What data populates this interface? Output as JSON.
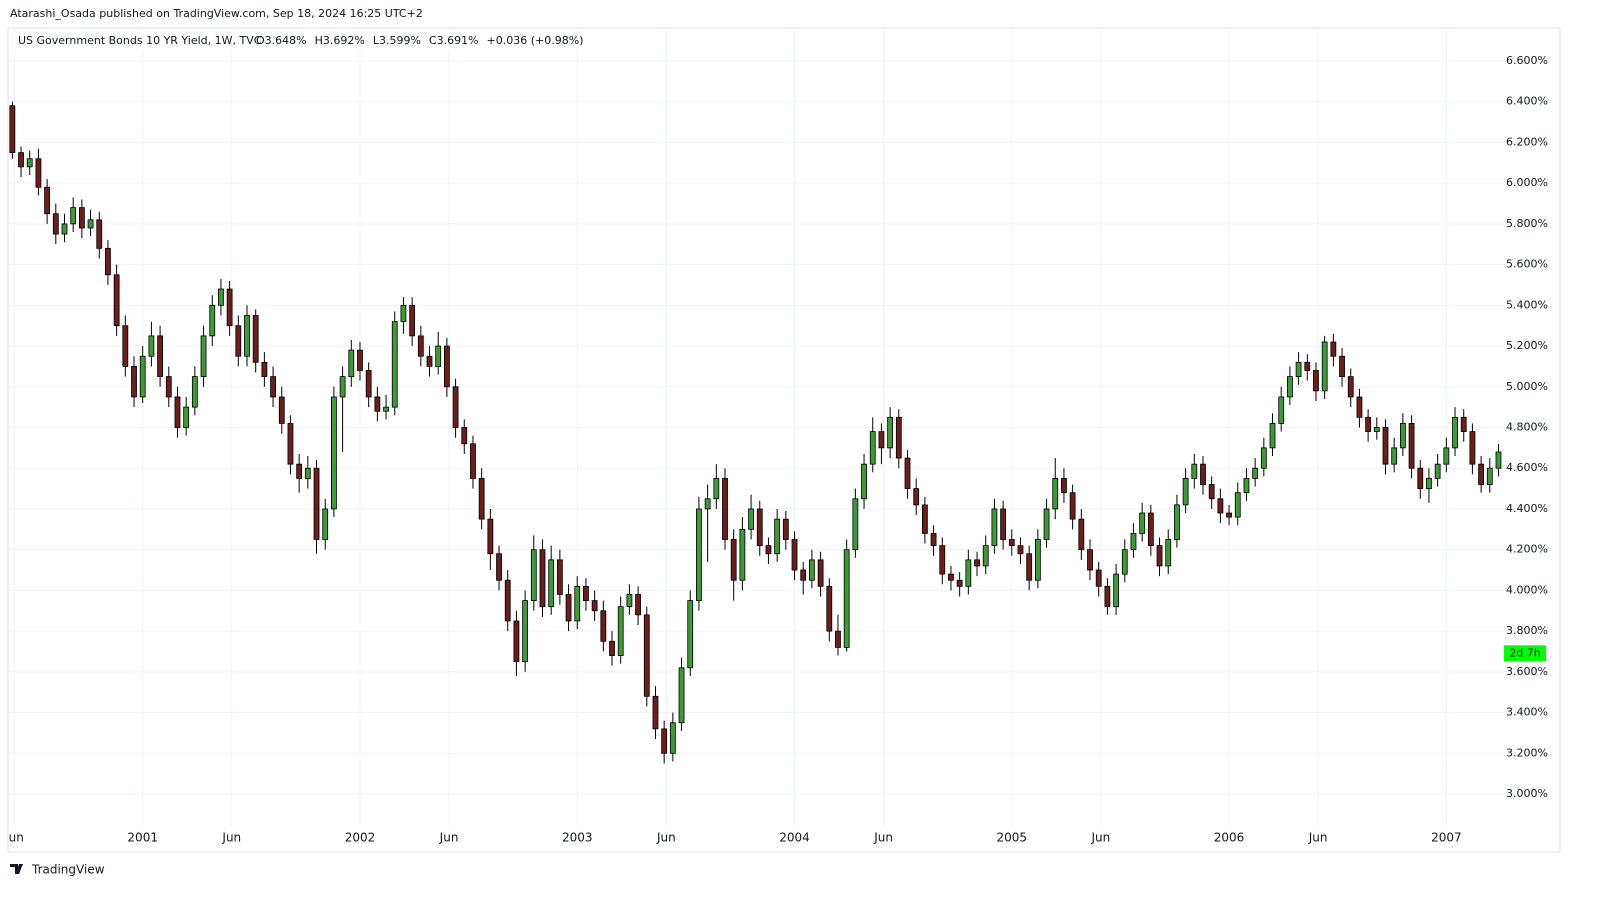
{
  "header": {
    "publisher": "Atarashi_Osada published on TradingView.com, Sep 18, 2024 16:25 UTC+2",
    "brand": "TradingView"
  },
  "chart_data": {
    "type": "candlestick",
    "title": "US Government Bonds 10 YR Yield, 1W, TVC",
    "legend_values": [
      "O3.648%",
      "H3.692%",
      "L3.599%",
      "C3.691%",
      "+0.036 (+0.98%)"
    ],
    "countdown": {
      "label": "2d 7h",
      "value": 3.691
    },
    "up_color": "#3d9b35",
    "down_color": "#6e1d1d",
    "outline_color": "#000000",
    "countdown_color": "#00ff00",
    "grid": true,
    "xlim": [
      2000.38,
      2007.27
    ],
    "xticks": [
      {
        "value": 2000.41,
        "label": "Jun"
      },
      {
        "value": 2001,
        "label": "2001"
      },
      {
        "value": 2001.41,
        "label": "Jun"
      },
      {
        "value": 2002,
        "label": "2002"
      },
      {
        "value": 2002.41,
        "label": "Jun"
      },
      {
        "value": 2003,
        "label": "2003"
      },
      {
        "value": 2003.41,
        "label": "Jun"
      },
      {
        "value": 2004,
        "label": "2004"
      },
      {
        "value": 2004.41,
        "label": "Jun"
      },
      {
        "value": 2005,
        "label": "2005"
      },
      {
        "value": 2005.41,
        "label": "Jun"
      },
      {
        "value": 2006,
        "label": "2006"
      },
      {
        "value": 2006.41,
        "label": "Jun"
      },
      {
        "value": 2007,
        "label": "2007"
      }
    ],
    "ylim": [
      2.843,
      6.762
    ],
    "yticks": [
      {
        "value": 3.0,
        "label": "3.000%"
      },
      {
        "value": 3.2,
        "label": "3.200%"
      },
      {
        "value": 3.4,
        "label": "3.400%"
      },
      {
        "value": 3.6,
        "label": "3.600%"
      },
      {
        "value": 3.8,
        "label": "3.800%"
      },
      {
        "value": 4.0,
        "label": "4.000%"
      },
      {
        "value": 4.2,
        "label": "4.200%"
      },
      {
        "value": 4.4,
        "label": "4.400%"
      },
      {
        "value": 4.6,
        "label": "4.600%"
      },
      {
        "value": 4.8,
        "label": "4.800%"
      },
      {
        "value": 5.0,
        "label": "5.000%"
      },
      {
        "value": 5.2,
        "label": "5.200%"
      },
      {
        "value": 5.4,
        "label": "5.400%"
      },
      {
        "value": 5.6,
        "label": "5.600%"
      },
      {
        "value": 5.8,
        "label": "5.800%"
      },
      {
        "value": 6.0,
        "label": "6.000%"
      },
      {
        "value": 6.2,
        "label": "6.200%"
      },
      {
        "value": 6.4,
        "label": "6.400%"
      },
      {
        "value": 6.6,
        "label": "6.600%"
      }
    ],
    "x": [
      2000.4,
      2000.44,
      2000.48,
      2000.52,
      2000.56,
      2000.6,
      2000.64,
      2000.68,
      2000.72,
      2000.76,
      2000.8,
      2000.84,
      2000.88,
      2000.92,
      2000.96,
      2001,
      2001.04,
      2001.08,
      2001.12,
      2001.16,
      2001.2,
      2001.24,
      2001.28,
      2001.32,
      2001.36,
      2001.4,
      2001.44,
      2001.48,
      2001.52,
      2001.56,
      2001.6,
      2001.64,
      2001.68,
      2001.72,
      2001.76,
      2001.8,
      2001.84,
      2001.88,
      2001.92,
      2001.96,
      2002,
      2002.04,
      2002.08,
      2002.12,
      2002.16,
      2002.2,
      2002.24,
      2002.28,
      2002.32,
      2002.36,
      2002.4,
      2002.44,
      2002.48,
      2002.52,
      2002.56,
      2002.6,
      2002.64,
      2002.68,
      2002.72,
      2002.76,
      2002.8,
      2002.84,
      2002.88,
      2002.92,
      2002.96,
      2003,
      2003.04,
      2003.08,
      2003.12,
      2003.16,
      2003.2,
      2003.24,
      2003.28,
      2003.32,
      2003.36,
      2003.4,
      2003.44,
      2003.48,
      2003.52,
      2003.56,
      2003.6,
      2003.64,
      2003.68,
      2003.72,
      2003.76,
      2003.8,
      2003.84,
      2003.88,
      2003.92,
      2003.96,
      2004,
      2004.04,
      2004.08,
      2004.12,
      2004.16,
      2004.2,
      2004.24,
      2004.28,
      2004.32,
      2004.36,
      2004.4,
      2004.44,
      2004.48,
      2004.52,
      2004.56,
      2004.6,
      2004.64,
      2004.68,
      2004.72,
      2004.76,
      2004.8,
      2004.84,
      2004.88,
      2004.92,
      2004.96,
      2005,
      2005.04,
      2005.08,
      2005.12,
      2005.16,
      2005.2,
      2005.24,
      2005.28,
      2005.32,
      2005.36,
      2005.4,
      2005.44,
      2005.48,
      2005.52,
      2005.56,
      2005.6,
      2005.64,
      2005.68,
      2005.72,
      2005.76,
      2005.8,
      2005.84,
      2005.88,
      2005.92,
      2005.96,
      2006,
      2006.04,
      2006.08,
      2006.12,
      2006.16,
      2006.2,
      2006.24,
      2006.28,
      2006.32,
      2006.36,
      2006.4,
      2006.44,
      2006.48,
      2006.52,
      2006.56,
      2006.6,
      2006.64,
      2006.68,
      2006.72,
      2006.76,
      2006.8,
      2006.84,
      2006.88,
      2006.92,
      2006.96,
      2007,
      2007.04,
      2007.08,
      2007.12,
      2007.16,
      2007.2,
      2007.24
    ],
    "ohlc": [
      [
        6.38,
        6.4,
        6.12,
        6.15
      ],
      [
        6.15,
        6.18,
        6.03,
        6.08
      ],
      [
        6.08,
        6.16,
        6.04,
        6.12
      ],
      [
        6.12,
        6.17,
        5.94,
        5.98
      ],
      [
        5.98,
        6.02,
        5.8,
        5.85
      ],
      [
        5.85,
        5.9,
        5.7,
        5.75
      ],
      [
        5.75,
        5.85,
        5.71,
        5.8
      ],
      [
        5.8,
        5.93,
        5.76,
        5.88
      ],
      [
        5.88,
        5.92,
        5.73,
        5.78
      ],
      [
        5.78,
        5.87,
        5.74,
        5.82
      ],
      [
        5.82,
        5.86,
        5.63,
        5.68
      ],
      [
        5.68,
        5.72,
        5.5,
        5.55
      ],
      [
        5.55,
        5.6,
        5.25,
        5.3
      ],
      [
        5.3,
        5.35,
        5.05,
        5.1
      ],
      [
        5.1,
        5.15,
        4.9,
        4.95
      ],
      [
        4.95,
        5.2,
        4.92,
        5.15
      ],
      [
        5.15,
        5.32,
        5.1,
        5.25
      ],
      [
        5.25,
        5.3,
        5.0,
        5.05
      ],
      [
        5.05,
        5.1,
        4.9,
        4.95
      ],
      [
        4.95,
        5.0,
        4.75,
        4.8
      ],
      [
        4.8,
        4.95,
        4.76,
        4.9
      ],
      [
        4.9,
        5.1,
        4.86,
        5.05
      ],
      [
        5.05,
        5.3,
        5.0,
        5.25
      ],
      [
        5.25,
        5.45,
        5.2,
        5.4
      ],
      [
        5.4,
        5.53,
        5.35,
        5.48
      ],
      [
        5.48,
        5.52,
        5.25,
        5.3
      ],
      [
        5.3,
        5.35,
        5.1,
        5.15
      ],
      [
        5.15,
        5.4,
        5.1,
        5.35
      ],
      [
        5.35,
        5.38,
        5.07,
        5.12
      ],
      [
        5.12,
        5.17,
        5.0,
        5.05
      ],
      [
        5.05,
        5.1,
        4.9,
        4.95
      ],
      [
        4.95,
        5.0,
        4.77,
        4.82
      ],
      [
        4.82,
        4.86,
        4.57,
        4.62
      ],
      [
        4.62,
        4.67,
        4.48,
        4.55
      ],
      [
        4.55,
        4.66,
        4.5,
        4.6
      ],
      [
        4.6,
        4.64,
        4.18,
        4.25
      ],
      [
        4.25,
        4.45,
        4.2,
        4.4
      ],
      [
        4.4,
        5.0,
        4.36,
        4.95
      ],
      [
        4.95,
        5.1,
        4.68,
        5.05
      ],
      [
        5.05,
        5.23,
        5.0,
        5.18
      ],
      [
        5.18,
        5.22,
        5.03,
        5.08
      ],
      [
        5.08,
        5.12,
        4.9,
        4.95
      ],
      [
        4.95,
        5.0,
        4.83,
        4.88
      ],
      [
        4.88,
        4.96,
        4.84,
        4.9
      ],
      [
        4.9,
        5.37,
        4.86,
        5.32
      ],
      [
        5.32,
        5.44,
        5.26,
        5.4
      ],
      [
        5.4,
        5.44,
        5.2,
        5.25
      ],
      [
        5.25,
        5.3,
        5.1,
        5.15
      ],
      [
        5.15,
        5.2,
        5.05,
        5.1
      ],
      [
        5.1,
        5.27,
        5.06,
        5.2
      ],
      [
        5.2,
        5.24,
        4.95,
        5.0
      ],
      [
        5.0,
        5.04,
        4.75,
        4.8
      ],
      [
        4.8,
        4.84,
        4.67,
        4.72
      ],
      [
        4.72,
        4.76,
        4.5,
        4.55
      ],
      [
        4.55,
        4.6,
        4.3,
        4.35
      ],
      [
        4.35,
        4.4,
        4.1,
        4.18
      ],
      [
        4.18,
        4.22,
        4.0,
        4.05
      ],
      [
        4.05,
        4.1,
        3.8,
        3.85
      ],
      [
        3.85,
        3.9,
        3.58,
        3.65
      ],
      [
        3.65,
        4.0,
        3.6,
        3.95
      ],
      [
        3.95,
        4.27,
        3.9,
        4.2
      ],
      [
        4.2,
        4.25,
        3.87,
        3.92
      ],
      [
        3.92,
        4.22,
        3.88,
        4.15
      ],
      [
        4.15,
        4.2,
        3.93,
        3.98
      ],
      [
        3.98,
        4.03,
        3.8,
        3.85
      ],
      [
        3.85,
        4.07,
        3.81,
        4.02
      ],
      [
        4.02,
        4.06,
        3.9,
        3.95
      ],
      [
        3.95,
        4.0,
        3.85,
        3.9
      ],
      [
        3.9,
        3.95,
        3.7,
        3.75
      ],
      [
        3.75,
        3.8,
        3.63,
        3.68
      ],
      [
        3.68,
        3.97,
        3.64,
        3.92
      ],
      [
        3.92,
        4.03,
        3.88,
        3.98
      ],
      [
        3.98,
        4.02,
        3.83,
        3.88
      ],
      [
        3.88,
        3.92,
        3.43,
        3.48
      ],
      [
        3.48,
        3.53,
        3.27,
        3.32
      ],
      [
        3.32,
        3.36,
        3.15,
        3.2
      ],
      [
        3.2,
        3.4,
        3.16,
        3.35
      ],
      [
        3.35,
        3.67,
        3.31,
        3.62
      ],
      [
        3.62,
        4.0,
        3.58,
        3.95
      ],
      [
        3.95,
        4.46,
        3.9,
        4.4
      ],
      [
        4.4,
        4.52,
        4.14,
        4.45
      ],
      [
        4.45,
        4.62,
        4.4,
        4.55
      ],
      [
        4.55,
        4.6,
        4.2,
        4.25
      ],
      [
        4.25,
        4.3,
        3.95,
        4.05
      ],
      [
        4.05,
        4.36,
        4.0,
        4.3
      ],
      [
        4.3,
        4.47,
        4.25,
        4.4
      ],
      [
        4.4,
        4.44,
        4.17,
        4.22
      ],
      [
        4.22,
        4.26,
        4.13,
        4.18
      ],
      [
        4.18,
        4.4,
        4.14,
        4.35
      ],
      [
        4.35,
        4.39,
        4.2,
        4.25
      ],
      [
        4.25,
        4.29,
        4.05,
        4.1
      ],
      [
        4.1,
        4.14,
        3.98,
        4.05
      ],
      [
        4.05,
        4.2,
        4.01,
        4.15
      ],
      [
        4.15,
        4.19,
        3.97,
        4.02
      ],
      [
        4.02,
        4.06,
        3.75,
        3.8
      ],
      [
        3.8,
        3.88,
        3.68,
        3.72
      ],
      [
        3.72,
        4.25,
        3.7,
        4.2
      ],
      [
        4.2,
        4.5,
        4.16,
        4.45
      ],
      [
        4.45,
        4.67,
        4.4,
        4.62
      ],
      [
        4.62,
        4.85,
        4.58,
        4.78
      ],
      [
        4.78,
        4.82,
        4.62,
        4.7
      ],
      [
        4.7,
        4.9,
        4.65,
        4.85
      ],
      [
        4.85,
        4.89,
        4.6,
        4.65
      ],
      [
        4.65,
        4.69,
        4.45,
        4.5
      ],
      [
        4.5,
        4.55,
        4.37,
        4.42
      ],
      [
        4.42,
        4.46,
        4.23,
        4.28
      ],
      [
        4.28,
        4.32,
        4.17,
        4.22
      ],
      [
        4.22,
        4.26,
        4.03,
        4.08
      ],
      [
        4.08,
        4.12,
        4.0,
        4.05
      ],
      [
        4.05,
        4.09,
        3.97,
        4.02
      ],
      [
        4.02,
        4.2,
        3.98,
        4.15
      ],
      [
        4.15,
        4.19,
        4.07,
        4.12
      ],
      [
        4.12,
        4.27,
        4.08,
        4.22
      ],
      [
        4.22,
        4.45,
        4.18,
        4.4
      ],
      [
        4.4,
        4.44,
        4.2,
        4.25
      ],
      [
        4.25,
        4.3,
        4.17,
        4.22
      ],
      [
        4.22,
        4.26,
        4.13,
        4.18
      ],
      [
        4.18,
        4.22,
        4.0,
        4.05
      ],
      [
        4.05,
        4.3,
        4.01,
        4.25
      ],
      [
        4.25,
        4.45,
        4.21,
        4.4
      ],
      [
        4.4,
        4.65,
        4.35,
        4.55
      ],
      [
        4.55,
        4.6,
        4.43,
        4.48
      ],
      [
        4.48,
        4.52,
        4.3,
        4.35
      ],
      [
        4.35,
        4.4,
        4.15,
        4.2
      ],
      [
        4.2,
        4.25,
        4.05,
        4.1
      ],
      [
        4.1,
        4.14,
        3.97,
        4.02
      ],
      [
        4.02,
        4.06,
        3.88,
        3.92
      ],
      [
        3.92,
        4.13,
        3.88,
        4.08
      ],
      [
        4.08,
        4.25,
        4.04,
        4.2
      ],
      [
        4.2,
        4.33,
        4.16,
        4.28
      ],
      [
        4.28,
        4.43,
        4.24,
        4.38
      ],
      [
        4.38,
        4.42,
        4.17,
        4.22
      ],
      [
        4.22,
        4.26,
        4.07,
        4.12
      ],
      [
        4.12,
        4.3,
        4.08,
        4.25
      ],
      [
        4.25,
        4.47,
        4.21,
        4.42
      ],
      [
        4.42,
        4.6,
        4.38,
        4.55
      ],
      [
        4.55,
        4.67,
        4.5,
        4.62
      ],
      [
        4.62,
        4.66,
        4.47,
        4.52
      ],
      [
        4.52,
        4.56,
        4.4,
        4.45
      ],
      [
        4.45,
        4.5,
        4.33,
        4.38
      ],
      [
        4.38,
        4.42,
        4.32,
        4.36
      ],
      [
        4.36,
        4.53,
        4.32,
        4.48
      ],
      [
        4.48,
        4.6,
        4.44,
        4.55
      ],
      [
        4.55,
        4.65,
        4.51,
        4.6
      ],
      [
        4.6,
        4.75,
        4.56,
        4.7
      ],
      [
        4.7,
        4.87,
        4.66,
        4.82
      ],
      [
        4.82,
        5.0,
        4.78,
        4.95
      ],
      [
        4.95,
        5.1,
        4.91,
        5.05
      ],
      [
        5.05,
        5.17,
        5.01,
        5.12
      ],
      [
        5.12,
        5.16,
        5.03,
        5.08
      ],
      [
        5.08,
        5.12,
        4.93,
        4.98
      ],
      [
        4.98,
        5.25,
        4.94,
        5.22
      ],
      [
        5.22,
        5.26,
        5.1,
        5.15
      ],
      [
        5.15,
        5.19,
        5.0,
        5.05
      ],
      [
        5.05,
        5.09,
        4.9,
        4.95
      ],
      [
        4.95,
        4.99,
        4.8,
        4.85
      ],
      [
        4.85,
        4.89,
        4.73,
        4.78
      ],
      [
        4.78,
        4.85,
        4.74,
        4.8
      ],
      [
        4.8,
        4.84,
        4.57,
        4.62
      ],
      [
        4.62,
        4.75,
        4.58,
        4.7
      ],
      [
        4.7,
        4.87,
        4.66,
        4.82
      ],
      [
        4.82,
        4.86,
        4.55,
        4.6
      ],
      [
        4.6,
        4.64,
        4.45,
        4.5
      ],
      [
        4.5,
        4.6,
        4.43,
        4.55
      ],
      [
        4.55,
        4.67,
        4.51,
        4.62
      ],
      [
        4.62,
        4.75,
        4.58,
        4.7
      ],
      [
        4.7,
        4.9,
        4.66,
        4.85
      ],
      [
        4.85,
        4.89,
        4.73,
        4.78
      ],
      [
        4.78,
        4.82,
        4.57,
        4.62
      ],
      [
        4.62,
        4.66,
        4.48,
        4.52
      ],
      [
        4.52,
        4.65,
        4.48,
        4.6
      ],
      [
        4.6,
        4.72,
        4.56,
        4.68
      ]
    ]
  }
}
